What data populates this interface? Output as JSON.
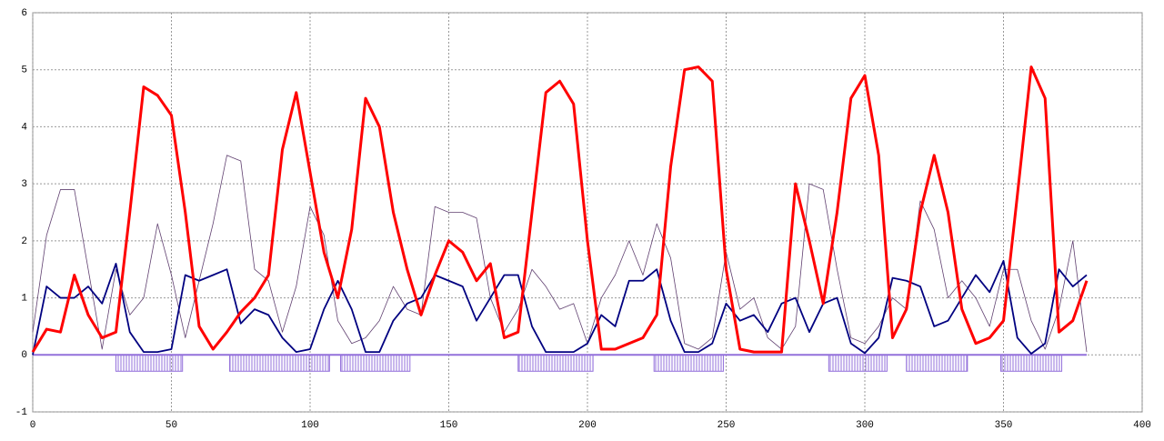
{
  "chart_data": {
    "type": "line",
    "x": [
      0,
      5,
      10,
      15,
      20,
      25,
      30,
      35,
      40,
      45,
      50,
      55,
      60,
      65,
      70,
      75,
      80,
      85,
      90,
      95,
      100,
      105,
      110,
      115,
      120,
      125,
      130,
      135,
      140,
      145,
      150,
      155,
      160,
      165,
      170,
      175,
      180,
      185,
      190,
      195,
      200,
      205,
      210,
      215,
      220,
      225,
      230,
      235,
      240,
      245,
      250,
      255,
      260,
      265,
      270,
      275,
      280,
      285,
      290,
      295,
      300,
      305,
      310,
      315,
      320,
      325,
      330,
      335,
      340,
      345,
      350,
      355,
      360,
      365,
      370,
      375,
      380
    ],
    "series": [
      {
        "color": "#604070",
        "width": 0.8,
        "values": [
          0.4,
          2.1,
          2.9,
          2.9,
          1.5,
          0.1,
          1.5,
          0.7,
          1.0,
          2.3,
          1.4,
          0.3,
          1.3,
          2.3,
          3.5,
          3.4,
          1.5,
          1.3,
          0.4,
          1.2,
          2.6,
          2.1,
          0.6,
          0.2,
          0.3,
          0.6,
          1.2,
          0.8,
          0.7,
          2.6,
          2.5,
          2.5,
          2.4,
          1.0,
          0.4,
          0.8,
          1.5,
          1.2,
          0.8,
          0.9,
          0.2,
          1.0,
          1.4,
          2.0,
          1.4,
          2.3,
          1.7,
          0.2,
          0.1,
          0.3,
          1.8,
          0.8,
          1.0,
          0.3,
          0.1,
          0.5,
          3.0,
          2.9,
          1.5,
          0.3,
          0.2,
          0.5,
          1.0,
          0.8,
          2.7,
          2.2,
          1.0,
          1.3,
          1.0,
          0.5,
          1.5,
          1.5,
          0.6,
          0.1,
          0.8,
          2.0,
          0.05
        ]
      },
      {
        "color": "#000080",
        "width": 1.8,
        "values": [
          0,
          1.2,
          1.0,
          1.0,
          1.2,
          0.9,
          1.6,
          0.4,
          0.05,
          0.05,
          0.1,
          1.4,
          1.3,
          1.4,
          1.5,
          0.55,
          0.8,
          0.7,
          0.3,
          0.05,
          0.1,
          0.8,
          1.3,
          0.8,
          0.05,
          0.05,
          0.6,
          0.9,
          1.0,
          1.4,
          1.3,
          1.2,
          0.6,
          1.0,
          1.4,
          1.4,
          0.5,
          0.05,
          0.05,
          0.05,
          0.2,
          0.7,
          0.5,
          1.3,
          1.3,
          1.5,
          0.6,
          0.05,
          0.05,
          0.2,
          0.9,
          0.6,
          0.7,
          0.4,
          0.9,
          1.0,
          0.4,
          0.9,
          1.0,
          0.2,
          0.03,
          0.3,
          1.35,
          1.3,
          1.2,
          0.5,
          0.6,
          1.0,
          1.4,
          1.1,
          1.65,
          0.3,
          0.02,
          0.2,
          1.5,
          1.2,
          1.4
        ]
      },
      {
        "color": "#ff0000",
        "width": 3,
        "values": [
          0.05,
          0.45,
          0.4,
          1.4,
          0.7,
          0.3,
          0.4,
          2.5,
          4.7,
          4.55,
          4.2,
          2.5,
          0.5,
          0.1,
          0.4,
          0.75,
          1.0,
          1.4,
          3.6,
          4.6,
          3.2,
          1.8,
          1.0,
          2.2,
          4.5,
          4.0,
          2.5,
          1.5,
          0.7,
          1.4,
          2.0,
          1.8,
          1.3,
          1.6,
          0.3,
          0.4,
          2.5,
          4.6,
          4.8,
          4.4,
          2.0,
          0.1,
          0.1,
          0.2,
          0.3,
          0.7,
          3.3,
          5.0,
          5.05,
          4.8,
          1.5,
          0.1,
          0.05,
          0.05,
          0.05,
          3.0,
          2.0,
          0.9,
          2.5,
          4.5,
          4.9,
          3.5,
          0.3,
          0.8,
          2.5,
          3.5,
          2.5,
          0.8,
          0.2,
          0.3,
          0.6,
          2.8,
          5.05,
          4.5,
          0.4,
          0.6,
          1.3
        ]
      }
    ],
    "regions": [
      {
        "start": 30,
        "end": 54
      },
      {
        "start": 71,
        "end": 107
      },
      {
        "start": 111,
        "end": 136
      },
      {
        "start": 175,
        "end": 202
      },
      {
        "start": 224,
        "end": 249
      },
      {
        "start": 287,
        "end": 308
      },
      {
        "start": 315,
        "end": 337
      },
      {
        "start": 349,
        "end": 371
      }
    ],
    "region_color": "#9370db",
    "xlim": [
      0,
      400
    ],
    "xticks": [
      0,
      50,
      100,
      150,
      200,
      250,
      300,
      350,
      400
    ],
    "ylim": [
      -1,
      6
    ],
    "yticks": [
      -1,
      0,
      1,
      2,
      3,
      4,
      5,
      6
    ],
    "grid": true
  }
}
